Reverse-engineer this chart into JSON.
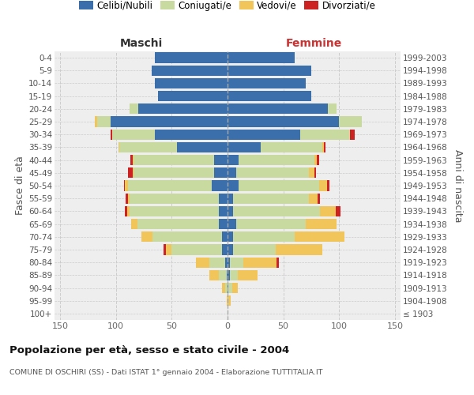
{
  "age_groups": [
    "100+",
    "95-99",
    "90-94",
    "85-89",
    "80-84",
    "75-79",
    "70-74",
    "65-69",
    "60-64",
    "55-59",
    "50-54",
    "45-49",
    "40-44",
    "35-39",
    "30-34",
    "25-29",
    "20-24",
    "15-19",
    "10-14",
    "5-9",
    "0-4"
  ],
  "birth_years": [
    "≤ 1903",
    "1904-1908",
    "1909-1913",
    "1914-1918",
    "1919-1923",
    "1924-1928",
    "1929-1933",
    "1934-1938",
    "1939-1943",
    "1944-1948",
    "1949-1953",
    "1954-1958",
    "1959-1963",
    "1964-1968",
    "1969-1973",
    "1974-1978",
    "1979-1983",
    "1984-1988",
    "1989-1993",
    "1994-1998",
    "1999-2003"
  ],
  "male_celibi": [
    0,
    0,
    0,
    1,
    2,
    5,
    5,
    8,
    8,
    8,
    14,
    12,
    12,
    45,
    65,
    105,
    80,
    62,
    65,
    68,
    65
  ],
  "male_coniugati": [
    0,
    0,
    2,
    7,
    14,
    45,
    62,
    73,
    80,
    80,
    75,
    72,
    72,
    52,
    38,
    12,
    8,
    0,
    0,
    0,
    0
  ],
  "male_vedovi": [
    0,
    1,
    3,
    8,
    12,
    5,
    10,
    5,
    2,
    1,
    3,
    1,
    1,
    1,
    0,
    2,
    0,
    0,
    0,
    0,
    0
  ],
  "male_divorziati": [
    0,
    0,
    0,
    0,
    0,
    2,
    0,
    0,
    2,
    2,
    1,
    4,
    2,
    0,
    2,
    0,
    0,
    0,
    0,
    0,
    0
  ],
  "female_celibi": [
    0,
    0,
    1,
    2,
    2,
    5,
    5,
    8,
    5,
    5,
    10,
    8,
    10,
    30,
    65,
    100,
    90,
    75,
    70,
    75,
    60
  ],
  "female_coniugati": [
    0,
    1,
    3,
    7,
    12,
    38,
    55,
    62,
    78,
    68,
    72,
    65,
    68,
    55,
    45,
    20,
    8,
    0,
    0,
    0,
    0
  ],
  "female_vedovi": [
    0,
    2,
    5,
    18,
    30,
    42,
    45,
    28,
    14,
    8,
    7,
    5,
    2,
    1,
    0,
    0,
    0,
    0,
    0,
    0,
    0
  ],
  "female_divorziati": [
    0,
    0,
    0,
    0,
    2,
    0,
    0,
    0,
    4,
    2,
    2,
    1,
    2,
    2,
    4,
    0,
    0,
    0,
    0,
    0,
    0
  ],
  "color_celibi": "#3a6fab",
  "color_coniugati": "#c8daa0",
  "color_vedovi": "#f2c55a",
  "color_divorziati": "#cc2222",
  "title": "Popolazione per età, sesso e stato civile - 2004",
  "subtitle": "COMUNE DI OSCHIRI (SS) - Dati ISTAT 1° gennaio 2004 - Elaborazione TUTTITALIA.IT",
  "xlabel_left": "Maschi",
  "xlabel_right": "Femmine",
  "ylabel_left": "Fasce di età",
  "ylabel_right": "Anni di nascita",
  "xlim": 155,
  "bg_color": "#ffffff",
  "plot_bg": "#eeeeee",
  "grid_color": "#cccccc"
}
